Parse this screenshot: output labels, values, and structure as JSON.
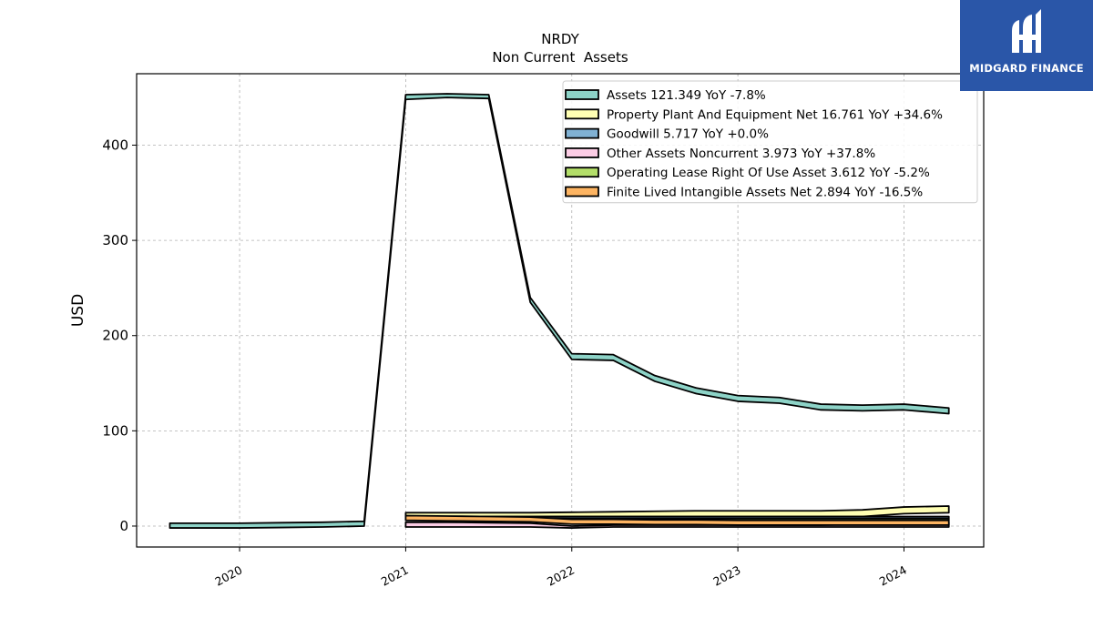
{
  "chart_data": {
    "type": "area",
    "title": "NRDY",
    "subtitle": "Non Current  Assets",
    "xlabel": "",
    "ylabel": "USD",
    "xlim": [
      2019.38,
      2024.48
    ],
    "ylim": [
      -22,
      475
    ],
    "x_ticks": [
      2020,
      2021,
      2022,
      2023,
      2024
    ],
    "x_tick_labels": [
      "2020",
      "2021",
      "2022",
      "2023",
      "2024"
    ],
    "y_ticks": [
      0,
      100,
      200,
      300,
      400
    ],
    "y_tick_labels": [
      "0",
      "100",
      "200",
      "300",
      "400"
    ],
    "grid": true,
    "legend_placement": "top-right",
    "series": [
      {
        "name": "Assets  121.349 YoY -7.8%",
        "color": "#8dd3c7",
        "x": [
          2019.58,
          2019.75,
          2020.0,
          2020.25,
          2020.5,
          2020.75,
          2021.0,
          2021.25,
          2021.5,
          2021.75,
          2022.0,
          2022.25,
          2022.5,
          2022.75,
          2023.0,
          2023.25,
          2023.5,
          2023.75,
          2024.0,
          2024.27
        ],
        "upper": [
          3,
          3,
          3,
          3.5,
          4,
          5,
          453,
          454,
          453,
          240,
          181,
          180,
          158,
          145,
          137,
          135,
          128,
          127,
          128,
          124
        ],
        "lower": [
          -2,
          -2,
          -2,
          -1.5,
          -1,
          0,
          448,
          450,
          449,
          235,
          175,
          174,
          152,
          139,
          131,
          129,
          122,
          121,
          122,
          118
        ]
      },
      {
        "name": "Property Plant And Equipment Net  16.761 YoY +34.6%",
        "color": "#ffffb3",
        "x": [
          2021.0,
          2021.25,
          2021.5,
          2021.75,
          2022.0,
          2022.25,
          2022.5,
          2022.75,
          2023.0,
          2023.25,
          2023.5,
          2023.75,
          2024.0,
          2024.27
        ],
        "upper": [
          14,
          14,
          14,
          14,
          14.5,
          15,
          15.5,
          16,
          16,
          16,
          16,
          17,
          20,
          21
        ],
        "lower": [
          10,
          10,
          10,
          10,
          10,
          10,
          10,
          10,
          10,
          10,
          10,
          10,
          13,
          14
        ]
      },
      {
        "name": "Goodwill  5.717 YoY +0.0%",
        "color": "#80b1d3",
        "x": [
          2021.0,
          2021.5,
          2022.0,
          2022.5,
          2023.0,
          2023.5,
          2024.0,
          2024.27
        ],
        "upper": [
          10,
          10,
          10,
          10,
          10,
          10,
          10,
          10
        ],
        "lower": [
          8,
          8,
          8,
          8,
          8,
          8,
          8,
          8
        ]
      },
      {
        "name": "Other Assets Noncurrent  3.973 YoY +37.8%",
        "color": "#fccde5",
        "x": [
          2021.0,
          2021.25,
          2021.5,
          2021.75,
          2022.0,
          2022.25,
          2022.5,
          2022.75,
          2023.0,
          2023.25,
          2023.5,
          2023.75,
          2024.0,
          2024.27
        ],
        "upper": [
          4,
          4,
          3.5,
          3,
          0,
          1,
          1,
          1,
          1,
          1,
          1,
          2,
          3,
          4
        ],
        "lower": [
          -1,
          -1,
          -1,
          -1,
          -2,
          -1,
          -1,
          -1,
          -1,
          -1,
          -1,
          -1,
          -1,
          -1
        ]
      },
      {
        "name": "Operating Lease Right Of Use Asset  3.612 YoY -5.2%",
        "color": "#b3de69",
        "x": [
          2021.0,
          2021.5,
          2022.0,
          2022.5,
          2023.0,
          2023.5,
          2024.0,
          2024.27
        ],
        "upper": [
          9,
          9,
          8,
          8,
          8,
          8,
          8,
          8
        ],
        "lower": [
          7,
          7,
          6,
          6,
          6,
          6,
          6,
          6
        ]
      },
      {
        "name": "Finite Lived Intangible Assets Net  2.894 YoY -16.5%",
        "color": "#fdb462",
        "x": [
          2021.0,
          2021.25,
          2021.5,
          2021.75,
          2022.0,
          2022.25,
          2022.5,
          2022.75,
          2023.0,
          2023.25,
          2023.5,
          2023.75,
          2024.0,
          2024.27
        ],
        "upper": [
          11,
          10.5,
          10,
          9.5,
          7,
          7,
          6.5,
          6.5,
          6,
          6,
          6,
          6,
          6,
          6
        ],
        "lower": [
          6,
          5.5,
          5,
          4.5,
          2,
          2,
          1.5,
          1.5,
          1,
          1,
          1,
          1,
          1,
          1
        ]
      }
    ]
  },
  "logo": {
    "text": "MIDGARD FINANCE",
    "color": "#2a56a8",
    "icon": "midgard-logo-icon"
  }
}
